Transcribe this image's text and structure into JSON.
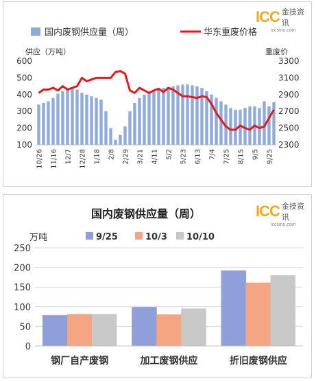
{
  "logo": {
    "mark": "ICC",
    "name": "金技资讯",
    "url": "iccsino.com"
  },
  "colors": {
    "bar1": "#8faadc",
    "line1": "#e31a1c",
    "bar2_a": "#8e9fd9",
    "bar2_b": "#f4a582",
    "bar2_c": "#c8c8c8"
  },
  "chart_data": [
    {
      "type": "bar+line",
      "legend": [
        "国内废钢供应量（周）",
        "华东重废价格"
      ],
      "ylabel_left": "供应（万吨）",
      "ylabel_right": "重废价",
      "ylim_left": [
        100,
        600
      ],
      "ylim_right": [
        2300,
        3300
      ],
      "yticks_left": [
        100,
        200,
        300,
        400,
        500,
        600
      ],
      "yticks_right": [
        2300,
        2500,
        2700,
        2900,
        3100,
        3300
      ],
      "x_tick_labels": [
        "10/26",
        "11/16",
        "12/7",
        "12/28",
        "1/18",
        "2/8",
        "2/29",
        "3/21",
        "4/11",
        "5/2",
        "5/23",
        "6/13",
        "7/4",
        "7/25",
        "8/15",
        "9/5",
        "9/25"
      ],
      "tick_every": 3,
      "bar_values": [
        340,
        350,
        360,
        380,
        405,
        420,
        430,
        440,
        430,
        410,
        400,
        390,
        380,
        370,
        300,
        200,
        130,
        160,
        210,
        300,
        350,
        380,
        400,
        410,
        420,
        430,
        440,
        445,
        450,
        455,
        460,
        460,
        455,
        450,
        440,
        420,
        400,
        380,
        360,
        340,
        320,
        310,
        310,
        320,
        330,
        330,
        320,
        360,
        330,
        355
      ],
      "line_values": [
        2920,
        2960,
        2960,
        2980,
        2950,
        3000,
        2960,
        2980,
        3000,
        3100,
        3060,
        3080,
        3100,
        3100,
        3100,
        3100,
        3170,
        3180,
        3150,
        2950,
        2920,
        2980,
        2950,
        2920,
        2950,
        2970,
        2930,
        2980,
        2960,
        2920,
        2880,
        2880,
        2870,
        2860,
        2880,
        2870,
        2790,
        2680,
        2600,
        2520,
        2480,
        2480,
        2530,
        2500,
        2480,
        2530,
        2500,
        2520,
        2620,
        2720
      ]
    },
    {
      "type": "bar",
      "title": "国内废钢供应量（周）",
      "unit": "万吨",
      "categories": [
        "钢厂自产废钢",
        "加工废钢供应",
        "折旧废钢供应"
      ],
      "ylim": [
        0,
        250
      ],
      "yticks": [
        0,
        50,
        100,
        150,
        200,
        250
      ],
      "series": [
        {
          "name": "9/25",
          "values": [
            78,
            99,
            192
          ]
        },
        {
          "name": "10/3",
          "values": [
            81,
            80,
            161
          ]
        },
        {
          "name": "10/10",
          "values": [
            81,
            95,
            180
          ]
        }
      ]
    }
  ]
}
